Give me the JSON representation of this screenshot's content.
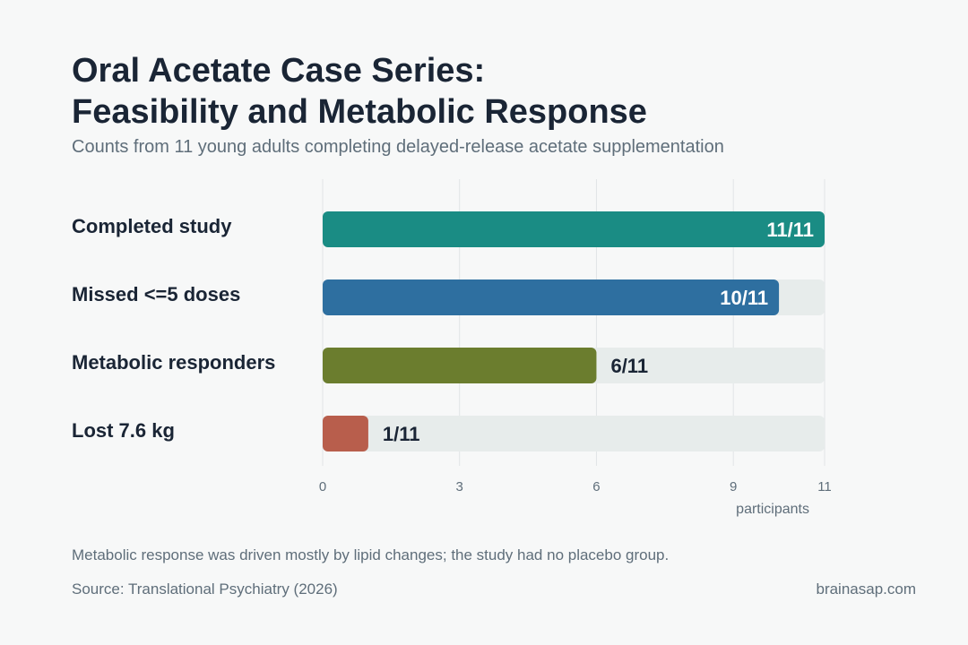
{
  "header": {
    "title_line1": "Oral Acetate Case Series:",
    "title_line2": "Feasibility and Metabolic Response",
    "subtitle": "Counts from 11 young adults completing delayed-release acetate supplementation"
  },
  "chart_data": {
    "type": "bar",
    "orientation": "horizontal",
    "categories": [
      "Completed study",
      "Missed <=5 doses",
      "Metabolic responders",
      "Lost 7.6 kg"
    ],
    "values": [
      11,
      10,
      6,
      1
    ],
    "total": 11,
    "value_labels": [
      "11/11",
      "10/11",
      "6/11",
      "1/11"
    ],
    "colors": [
      "#1a8c84",
      "#2e6fa0",
      "#6b7d2e",
      "#b85e4c"
    ],
    "track_color": "#e7eceb",
    "xlim": [
      0,
      11
    ],
    "xticks": [
      0,
      3,
      6,
      9,
      11
    ],
    "xlabel": "participants",
    "grid": true
  },
  "footer": {
    "note": "Metabolic response was driven mostly by lipid changes; the study had no placebo group.",
    "source": "Source: Translational Psychiatry (2026)",
    "brand": "brainasap.com"
  }
}
